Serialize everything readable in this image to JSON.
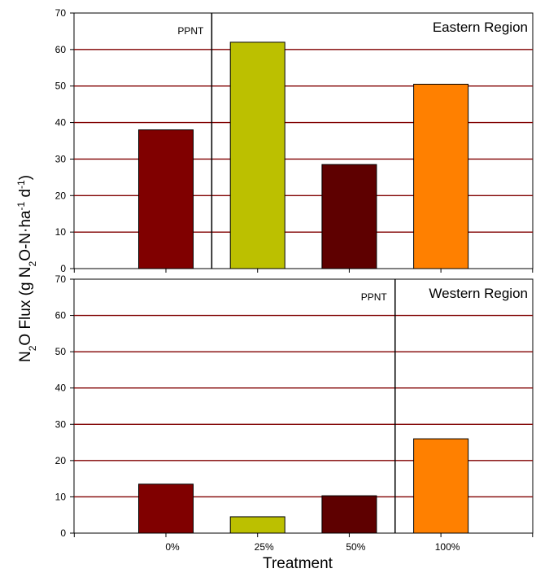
{
  "chart_data": {
    "type": "bar",
    "categories": [
      "0%",
      "25%",
      "50%",
      "100%"
    ],
    "xlabel": "Treatment",
    "ylabel": {
      "parts": [
        "N",
        "2",
        "O Flux (g N",
        "2",
        "O-N·ha",
        "-1",
        " d",
        "-1",
        ")"
      ]
    },
    "colors": [
      "#800000",
      "#bcc000",
      "#5e0000",
      "#ff8000"
    ],
    "gridline_color": "#800000",
    "panels": [
      {
        "region": "Eastern Region",
        "values": [
          38,
          62,
          28.5,
          50.5
        ],
        "ylim": [
          0,
          70
        ],
        "yticks": [
          "0",
          "10",
          "20",
          "30",
          "40",
          "50",
          "60",
          "70"
        ],
        "ppnt_label": "PPNT",
        "ppnt_after_category": 0,
        "grid": true
      },
      {
        "region": "Western Region",
        "values": [
          13.5,
          4.5,
          10.3,
          26
        ],
        "ylim": [
          0,
          70
        ],
        "yticks": [
          "0",
          "10",
          "20",
          "30",
          "40",
          "50",
          "60",
          "70"
        ],
        "ppnt_label": "PPNT",
        "ppnt_after_category": 2,
        "grid": true
      }
    ]
  }
}
